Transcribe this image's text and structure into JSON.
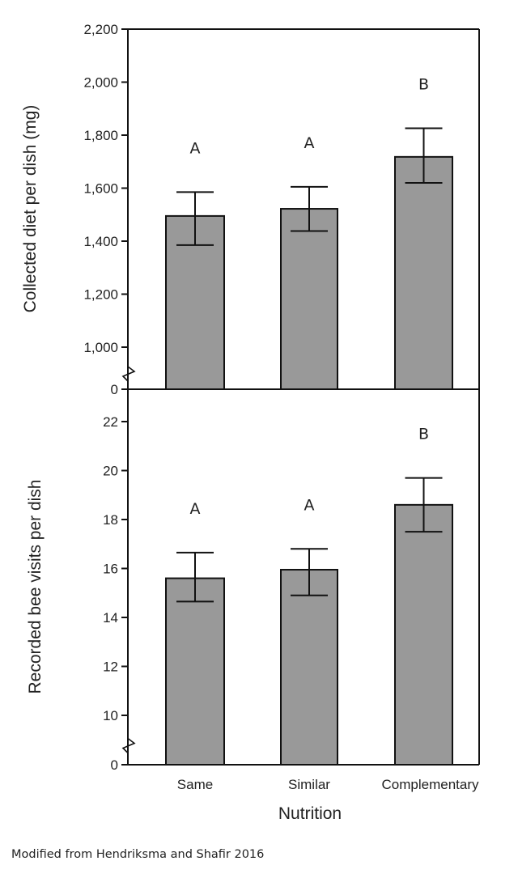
{
  "chart_data": [
    {
      "type": "bar",
      "panel": "top",
      "categories": [
        "Same",
        "Similar",
        "Complementary"
      ],
      "values": [
        1495,
        1522,
        1718
      ],
      "error_upper": [
        1585,
        1605,
        1826
      ],
      "error_lower": [
        1385,
        1438,
        1620
      ],
      "significance_labels": [
        "A",
        "A",
        "B"
      ],
      "ylabel": "Collected diet per dish (mg)",
      "yticks": [
        0,
        1000,
        1200,
        1400,
        1600,
        1800,
        2000,
        2200
      ],
      "ytick_labels": [
        "0",
        "1,000",
        "1,200",
        "1,400",
        "1,600",
        "1,800",
        "2,000",
        "2,200"
      ],
      "ylim": [
        0,
        2200
      ],
      "axis_break": [
        0,
        1000
      ],
      "bar_color": "#999999",
      "grid": false
    },
    {
      "type": "bar",
      "panel": "bottom",
      "categories": [
        "Same",
        "Similar",
        "Complementary"
      ],
      "values": [
        15.6,
        15.95,
        18.6
      ],
      "error_upper": [
        16.65,
        16.8,
        19.7
      ],
      "error_lower": [
        14.65,
        14.9,
        17.5
      ],
      "significance_labels": [
        "A",
        "A",
        "B"
      ],
      "ylabel": "Recorded bee visits per dish",
      "xlabel": "Nutrition",
      "yticks": [
        0,
        10,
        12,
        14,
        16,
        18,
        20,
        22
      ],
      "ytick_labels": [
        "0",
        "10",
        "12",
        "14",
        "16",
        "18",
        "20",
        "22"
      ],
      "ylim": [
        0,
        23
      ],
      "axis_break": [
        0,
        10
      ],
      "bar_color": "#999999",
      "grid": false
    }
  ],
  "caption": "Modified from Hendriksma and Shafir 2016"
}
